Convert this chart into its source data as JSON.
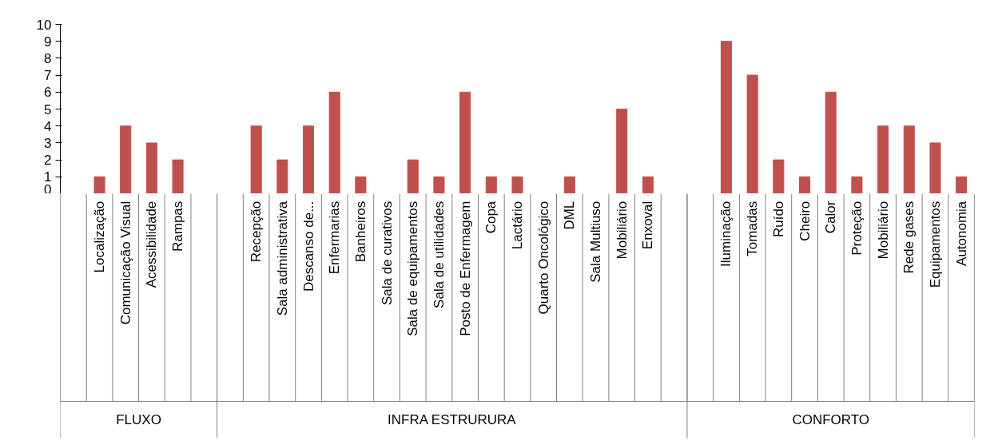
{
  "chart_data": {
    "type": "bar",
    "categories": [
      null,
      "Localização",
      "Comunicação Visual",
      "Acessibilidade",
      "Rampas",
      null,
      null,
      "Recepção",
      "Sala administrativa",
      "Descanso de...",
      "Enfermarias",
      "Banheiros",
      "Sala de curativos",
      "Sala de equipamentos",
      "Sala de utilidades",
      "Posto de Enfermagem",
      "Copa",
      "Lactário",
      "Quarto Oncológico",
      "DML",
      "Sala Multiuso",
      "Mobiliário",
      "Enxoval",
      null,
      null,
      "Iluminação",
      "Tomadas",
      "Ruído",
      "Cheiro",
      "Calor",
      "Proteção",
      "Mobiliário",
      "Rede gases",
      "Equipamentos",
      "Autonomia"
    ],
    "values": [
      null,
      1,
      4,
      3,
      2,
      null,
      null,
      4,
      2,
      4,
      6,
      1,
      0,
      2,
      1,
      6,
      1,
      1,
      0,
      1,
      0,
      5,
      1,
      null,
      null,
      9,
      7,
      2,
      1,
      6,
      1,
      4,
      4,
      3,
      1
    ],
    "color": "#c0504d",
    "ylim": [
      0,
      10
    ],
    "yticks": [
      0,
      1,
      2,
      3,
      4,
      5,
      6,
      7,
      8,
      9,
      10
    ],
    "annotations": [
      "FLUXO",
      "INFRA ESTRURURA",
      "CONFORTO"
    ]
  }
}
